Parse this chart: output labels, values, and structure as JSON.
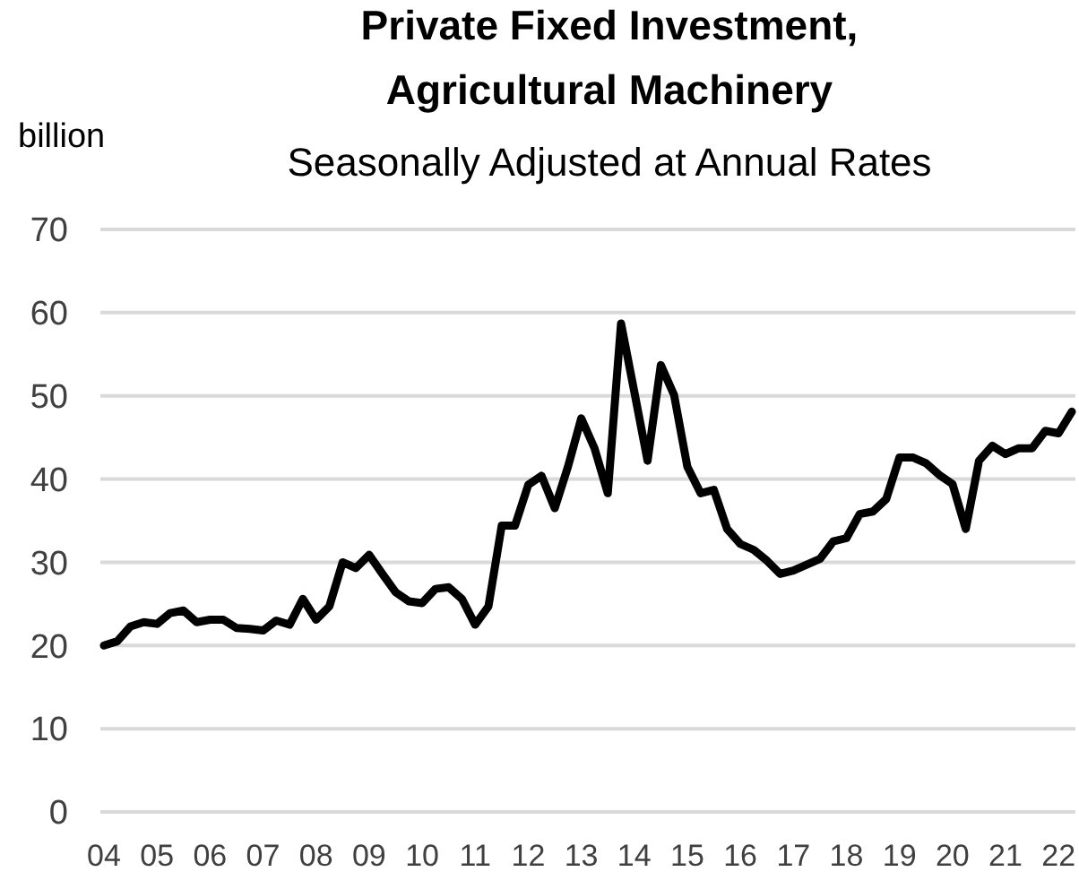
{
  "chart_data": {
    "type": "line",
    "title": "Private Fixed Investment,\nAgricultural Machinery",
    "subtitle": "Seasonally Adjusted at Annual Rates",
    "ylabel": "billion",
    "x": [
      2004,
      2004.25,
      2004.5,
      2004.75,
      2005,
      2005.25,
      2005.5,
      2005.75,
      2006,
      2006.25,
      2006.5,
      2006.75,
      2007,
      2007.25,
      2007.5,
      2007.75,
      2008,
      2008.25,
      2008.5,
      2008.75,
      2009,
      2009.25,
      2009.5,
      2009.75,
      2010,
      2010.25,
      2010.5,
      2010.75,
      2011,
      2011.25,
      2011.5,
      2011.75,
      2012,
      2012.25,
      2012.5,
      2012.75,
      2013,
      2013.25,
      2013.5,
      2013.75,
      2014,
      2014.25,
      2014.5,
      2014.75,
      2015,
      2015.25,
      2015.5,
      2015.75,
      2016,
      2016.25,
      2016.5,
      2016.75,
      2017,
      2017.25,
      2017.5,
      2017.75,
      2018,
      2018.25,
      2018.5,
      2018.75,
      2019,
      2019.25,
      2019.5,
      2019.75,
      2020,
      2020.25,
      2020.5,
      2020.75,
      2021,
      2021.25,
      2021.5,
      2021.75,
      2022,
      2022.25
    ],
    "series": [
      {
        "color": "#000000",
        "values": [
          20.0,
          20.5,
          22.3,
          22.8,
          22.6,
          23.9,
          24.2,
          22.8,
          23.1,
          23.1,
          22.1,
          22.0,
          21.8,
          23.0,
          22.5,
          25.6,
          23.1,
          24.7,
          30.0,
          29.3,
          30.9,
          28.6,
          26.4,
          25.3,
          25.1,
          26.8,
          27.0,
          25.6,
          22.5,
          24.7,
          34.4,
          34.4,
          39.3,
          40.4,
          36.5,
          41.5,
          47.3,
          43.7,
          38.3,
          58.7,
          50.5,
          42.2,
          53.7,
          50.1,
          41.5,
          38.3,
          38.7,
          34.0,
          32.2,
          31.5,
          30.2,
          28.6,
          29.0,
          29.7,
          30.4,
          32.5,
          32.9,
          35.8,
          36.1,
          37.6,
          42.6,
          42.6,
          41.9,
          40.5,
          39.4,
          34.0,
          42.2,
          44.0,
          43.0,
          43.7,
          43.7,
          45.8,
          45.5,
          48.1
        ]
      }
    ],
    "xlim": [
      2004,
      2022.25
    ],
    "xticks": [
      {
        "value": 2004,
        "label": "04"
      },
      {
        "value": 2005,
        "label": "05"
      },
      {
        "value": 2006,
        "label": "06"
      },
      {
        "value": 2007,
        "label": "07"
      },
      {
        "value": 2008,
        "label": "08"
      },
      {
        "value": 2009,
        "label": "09"
      },
      {
        "value": 2010,
        "label": "10"
      },
      {
        "value": 2011,
        "label": "11"
      },
      {
        "value": 2012,
        "label": "12"
      },
      {
        "value": 2013,
        "label": "13"
      },
      {
        "value": 2014,
        "label": "14"
      },
      {
        "value": 2015,
        "label": "15"
      },
      {
        "value": 2016,
        "label": "16"
      },
      {
        "value": 2017,
        "label": "17"
      },
      {
        "value": 2018,
        "label": "18"
      },
      {
        "value": 2019,
        "label": "19"
      },
      {
        "value": 2020,
        "label": "20"
      },
      {
        "value": 2021,
        "label": "21"
      },
      {
        "value": 2022,
        "label": "22"
      }
    ],
    "ylim": [
      0,
      70
    ],
    "yticks": [
      0,
      10,
      20,
      30,
      40,
      50,
      60,
      70
    ],
    "grid": "y",
    "marker": "none",
    "line_style": "solid"
  }
}
